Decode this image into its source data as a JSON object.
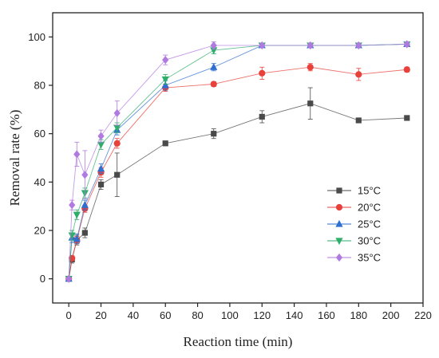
{
  "chart_data": {
    "type": "line",
    "xlabel": "Reaction time (min)",
    "ylabel": "Removal rate (%)",
    "xlim": [
      -10,
      220
    ],
    "ylim": [
      -10,
      110
    ],
    "xticks": [
      "0",
      "20",
      "40",
      "60",
      "80",
      "100",
      "120",
      "140",
      "160",
      "180",
      "200",
      "220"
    ],
    "yticks": [
      "0",
      "20",
      "40",
      "60",
      "80",
      "100"
    ],
    "x": [
      0,
      2,
      5,
      10,
      20,
      30,
      60,
      90,
      120,
      150,
      180,
      210
    ],
    "legend_position": "center-right",
    "grid": false,
    "series": [
      {
        "name": "15°C",
        "color": "#4a4a4a",
        "marker": "square",
        "values": [
          0,
          8,
          16,
          19,
          39,
          43,
          56,
          60,
          67,
          72.5,
          65.5,
          66.5
        ],
        "errors": [
          0,
          1.5,
          2,
          2,
          2,
          9,
          1,
          2,
          2.5,
          6.5,
          1,
          1
        ]
      },
      {
        "name": "20°C",
        "color": "#e8403a",
        "marker": "circle",
        "values": [
          0,
          8.5,
          16,
          29,
          44,
          56,
          79,
          80.5,
          85,
          87.5,
          84.5,
          86.5
        ],
        "errors": [
          0,
          1,
          1.5,
          1.5,
          2,
          2,
          1.5,
          1,
          2.5,
          1.5,
          2.5,
          1
        ]
      },
      {
        "name": "25°C",
        "color": "#2f6fcf",
        "marker": "triangle-up",
        "values": [
          0,
          17,
          16.5,
          30.5,
          45.5,
          61.5,
          80,
          87.5,
          96.5,
          96.5,
          96.5,
          97
        ],
        "errors": [
          0,
          2,
          2,
          2,
          2,
          2,
          2,
          1.5,
          1,
          1,
          1,
          1
        ]
      },
      {
        "name": "30°C",
        "color": "#2fae6b",
        "marker": "triangle-down",
        "values": [
          0,
          18,
          26.5,
          35.5,
          55.5,
          62.5,
          82.5,
          94.5,
          96.5,
          96.5,
          96.5,
          97
        ],
        "errors": [
          0,
          2,
          2,
          2,
          2,
          2,
          2,
          1.5,
          1,
          1,
          1,
          1
        ]
      },
      {
        "name": "35°C",
        "color": "#b07ae0",
        "marker": "diamond",
        "values": [
          0,
          30.5,
          51.5,
          43,
          59,
          68.5,
          90.5,
          96.5,
          96.5,
          96.5,
          96.5,
          97
        ],
        "errors": [
          0,
          2,
          5,
          10,
          2.5,
          5,
          2,
          1.5,
          1,
          1,
          1,
          1
        ]
      }
    ]
  }
}
